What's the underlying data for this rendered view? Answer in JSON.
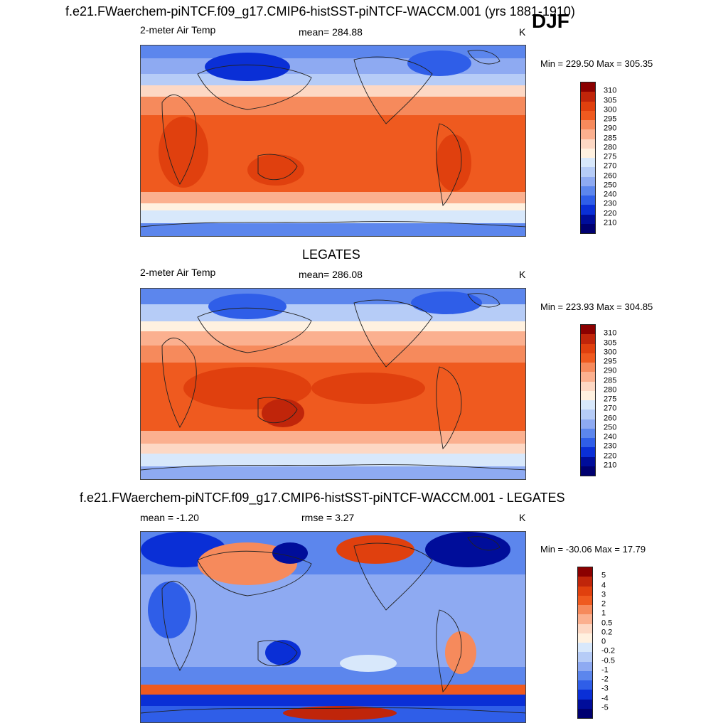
{
  "header": {
    "title": "f.e21.FWaerchem-piNTCF.f09_g17.CMIP6-histSST-piNTCF-WACCM.001 (yrs 1881-1910)",
    "season": "DJF"
  },
  "panels": [
    {
      "variable": "2-meter Air Temp",
      "stat": "mean= 284.88",
      "units": "K",
      "minmax": "Min = 229.50 Max = 305.35",
      "colorbar_labels": [
        "310",
        "305",
        "300",
        "295",
        "290",
        "285",
        "280",
        "275",
        "270",
        "260",
        "250",
        "240",
        "230",
        "220",
        "210"
      ]
    },
    {
      "dataset": "LEGATES",
      "variable": "2-meter Air Temp",
      "stat": "mean= 286.08",
      "units": "K",
      "minmax": "Min = 223.93 Max = 304.85",
      "colorbar_labels": [
        "310",
        "305",
        "300",
        "295",
        "290",
        "285",
        "280",
        "275",
        "270",
        "260",
        "250",
        "240",
        "230",
        "220",
        "210"
      ]
    },
    {
      "title": "f.e21.FWaerchem-piNTCF.f09_g17.CMIP6-histSST-piNTCF-WACCM.001 - LEGATES",
      "stat_mean": "mean =  -1.20",
      "stat_rmse": "rmse =   3.27",
      "units": "K",
      "minmax": "Min = -30.06 Max =  17.79",
      "colorbar_labels": [
        "5",
        "4",
        "3",
        "2",
        "1",
        "0.5",
        "0.2",
        "0",
        "-0.2",
        "-0.5",
        "-1",
        "-2",
        "-3",
        "-4",
        "-5"
      ]
    }
  ],
  "colors": {
    "abs_scale": [
      "#8b0000",
      "#c0250a",
      "#e0400e",
      "#ef5a1f",
      "#f68a5c",
      "#fbb08f",
      "#fdd8c4",
      "#fff1e0",
      "#d8e8fb",
      "#b6ccf7",
      "#8eaaf2",
      "#5c86ed",
      "#2f5ee8",
      "#0a2fd6",
      "#000d9a",
      "#000070"
    ],
    "diff_scale": [
      "#8b0000",
      "#c0250a",
      "#e0400e",
      "#ef5a1f",
      "#f68a5c",
      "#fbb08f",
      "#fdd8c4",
      "#fff1e0",
      "#d8e8fb",
      "#b6ccf7",
      "#8eaaf2",
      "#5c86ed",
      "#2f5ee8",
      "#0a2fd6",
      "#000d9a",
      "#000070"
    ]
  }
}
